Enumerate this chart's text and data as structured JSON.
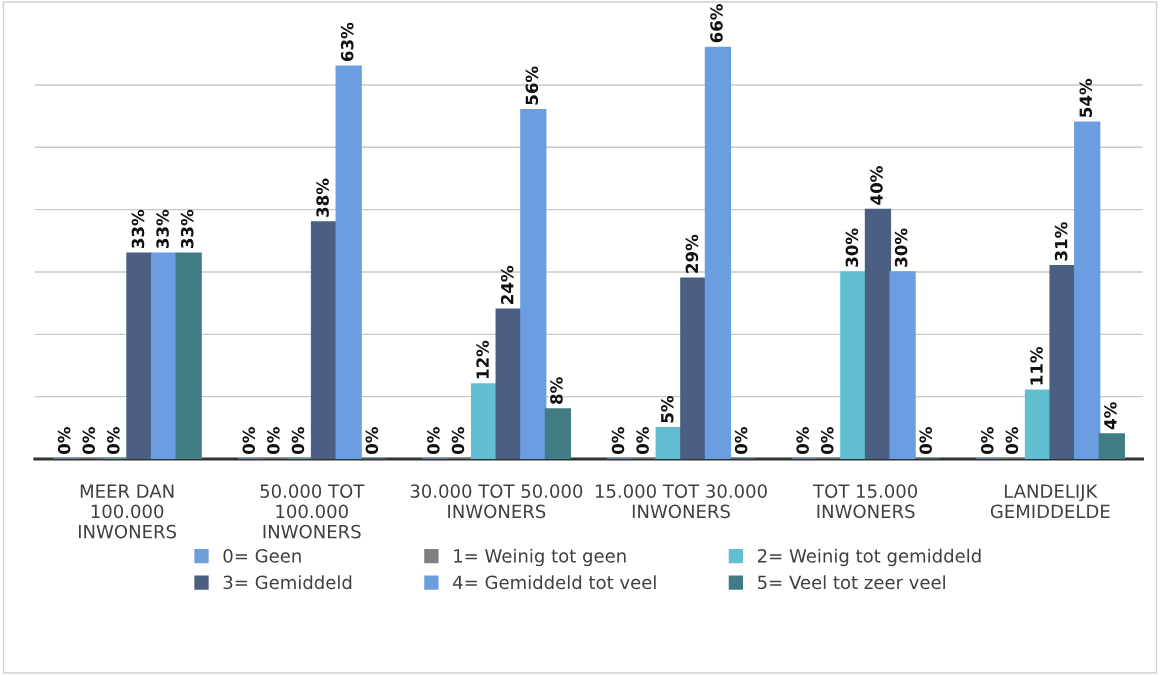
{
  "chart_data": {
    "type": "bar",
    "categories": [
      "MEER DAN\n100.000\nINWONERS",
      "50.000 TOT\n100.000\nINWONERS",
      "30.000 TOT 50.000\nINWONERS",
      "15.000 TOT 30.000\nINWONERS",
      "TOT 15.000\nINWONERS",
      "LANDELIJK\nGEMIDDELDE"
    ],
    "series": [
      {
        "name": "0= Geen",
        "color": "#6f9fd8",
        "values": [
          0,
          0,
          0,
          0,
          0,
          0
        ],
        "value_labels": [
          "0%",
          "0%",
          "0%",
          "0%",
          "0%",
          "0%"
        ]
      },
      {
        "name": "1= Weinig tot geen",
        "color": "#7f7f7f",
        "values": [
          0,
          0,
          0,
          0,
          0,
          0
        ],
        "value_labels": [
          "0%",
          "0%",
          "0%",
          "0%",
          "0%",
          "0%"
        ]
      },
      {
        "name": "2= Weinig tot gemiddeld",
        "color": "#62bfd2",
        "values": [
          0,
          0,
          12,
          5,
          30,
          11
        ],
        "value_labels": [
          "0%",
          "0%",
          "12%",
          "5%",
          "30%",
          "11%"
        ]
      },
      {
        "name": "3= Gemiddeld",
        "color": "#4a5f82",
        "values": [
          33,
          38,
          24,
          29,
          40,
          31
        ],
        "value_labels": [
          "33%",
          "38%",
          "24%",
          "29%",
          "40%",
          "31%"
        ]
      },
      {
        "name": "4= Gemiddeld tot veel",
        "color": "#6a9ee0",
        "values": [
          33,
          63,
          56,
          66,
          30,
          54
        ],
        "value_labels": [
          "33%",
          "63%",
          "56%",
          "66%",
          "30%",
          "54%"
        ]
      },
      {
        "name": "5= Veel tot zeer veel",
        "color": "#417c85",
        "values": [
          33,
          0,
          8,
          0,
          0,
          4
        ],
        "value_labels": [
          "33%",
          "0%",
          "8%",
          "0%",
          "0%",
          "4%"
        ]
      }
    ],
    "grid": "y",
    "legend": "bottom",
    "tick_labels": "x"
  }
}
